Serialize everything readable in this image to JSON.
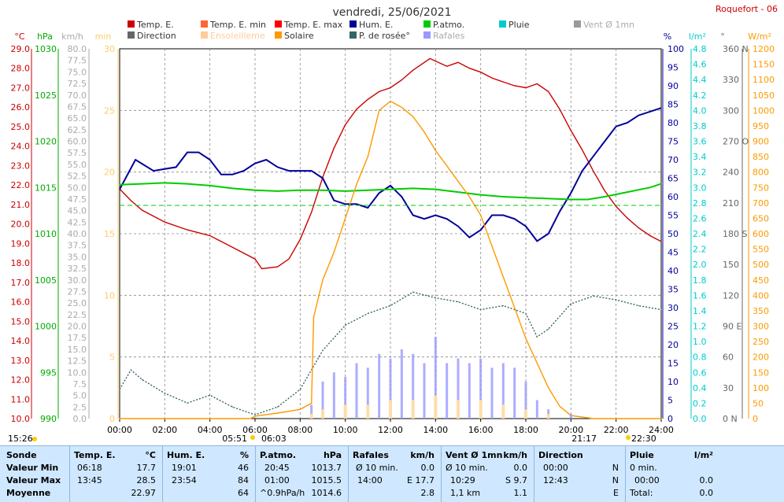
{
  "title": "vendredi, 25/06/2021",
  "station": "Roquefort - 06",
  "legend": [
    {
      "label": "Temp. E.",
      "color": "#cc0000"
    },
    {
      "label": "Temp. E. min",
      "color": "#ff6633"
    },
    {
      "label": "Temp. E. max",
      "color": "#ff0000"
    },
    {
      "label": "Hum. E.",
      "color": "#000099"
    },
    {
      "label": "P.atmo.",
      "color": "#00cc00"
    },
    {
      "label": "Pluie",
      "color": "#00cccc"
    },
    {
      "label": "Vent Ø 1mn",
      "color": "#999999"
    },
    {
      "label": "Direction",
      "color": "#666666"
    },
    {
      "label": "Ensoleilleme",
      "color": "#ffcc99"
    },
    {
      "label": "Solaire",
      "color": "#ff9900"
    },
    {
      "label": "P. de rosée°",
      "color": "#336666"
    },
    {
      "label": "Rafales",
      "color": "#9999ff"
    }
  ],
  "axes": {
    "temp": {
      "unit": "°C",
      "color": "#cc0000",
      "ticks": [
        "29.0",
        "28.0",
        "27.0",
        "26.0",
        "25.0",
        "24.0",
        "23.0",
        "22.0",
        "21.0",
        "20.0",
        "19.0",
        "18.0",
        "17.0",
        "16.0",
        "15.0",
        "14.0",
        "13.0",
        "12.0",
        "11.0",
        "10.0"
      ]
    },
    "press": {
      "unit": "hPa",
      "color": "#00aa00",
      "ticks": [
        "1030",
        "1025",
        "1020",
        "1015",
        "1010",
        "1005",
        "1000",
        "995",
        "990"
      ]
    },
    "wind": {
      "unit": "km/h",
      "color": "#aaaaaa",
      "ticks": [
        "80.0",
        "77.5",
        "75.0",
        "72.5",
        "70.0",
        "67.5",
        "65.0",
        "62.5",
        "60.0",
        "57.5",
        "55.0",
        "52.5",
        "50.0",
        "47.5",
        "45.0",
        "42.5",
        "40.0",
        "37.5",
        "35.0",
        "32.5",
        "30.0",
        "27.5",
        "25.0",
        "22.5",
        "20.0",
        "17.5",
        "15.0",
        "12.5",
        "10.0",
        "7.5",
        "5.0",
        "2.5",
        "0.0"
      ]
    },
    "min": {
      "unit": "min",
      "color": "#ffcc66",
      "ticks": [
        "30",
        "25",
        "20",
        "15",
        "10",
        "5",
        "0"
      ]
    },
    "hum": {
      "unit": "%",
      "color": "#000099",
      "ticks": [
        "100",
        "95",
        "90",
        "85",
        "80",
        "75",
        "70",
        "65",
        "60",
        "55",
        "50",
        "45",
        "40",
        "35",
        "30",
        "25",
        "20",
        "15",
        "10",
        "5",
        "0"
      ]
    },
    "rain": {
      "unit": "l/m²",
      "color": "#00cccc",
      "ticks": [
        "4.8",
        "4.6",
        "4.4",
        "4.2",
        "4.0",
        "3.8",
        "3.6",
        "3.4",
        "3.2",
        "3.0",
        "2.8",
        "2.6",
        "2.4",
        "2.2",
        "2.0",
        "1.8",
        "1.6",
        "1.4",
        "1.2",
        "1.0",
        "0.8",
        "0.6",
        "0.4",
        "0.2",
        "0.0"
      ]
    },
    "dir": {
      "unit": "°",
      "color": "#666666",
      "ticks": [
        "360 N",
        "330",
        "300",
        "270 O",
        "240",
        "210",
        "180 S",
        "150",
        "120",
        "90 E",
        "60",
        "30",
        "0 N"
      ]
    },
    "solar": {
      "unit": "W/m²",
      "color": "#ff9900",
      "ticks": [
        "1200",
        "1150",
        "1100",
        "1050",
        "1000",
        "950",
        "900",
        "850",
        "800",
        "750",
        "700",
        "650",
        "600",
        "550",
        "500",
        "450",
        "400",
        "350",
        "300",
        "250",
        "200",
        "150",
        "100",
        "50",
        "0"
      ]
    },
    "x": {
      "ticks": [
        "00:00",
        "02:00",
        "04:00",
        "06:00",
        "08:00",
        "10:00",
        "12:00",
        "14:00",
        "16:00",
        "18:00",
        "20:00",
        "22:00",
        "24:00"
      ]
    }
  },
  "markers": {
    "moonrise": "15:26",
    "sunrise_a": "05:51",
    "sunrise_b": "06:03",
    "sunset_a": "21:17",
    "sunset_b": "22:30"
  },
  "chart_data": {
    "type": "line",
    "x_unit": "hour",
    "xlim": [
      0,
      24
    ],
    "series": [
      {
        "name": "Temp. E.",
        "unit": "°C",
        "color": "#cc0000",
        "points": [
          [
            0,
            21.8
          ],
          [
            0.5,
            21.2
          ],
          [
            1,
            20.7
          ],
          [
            2,
            20.1
          ],
          [
            3,
            19.7
          ],
          [
            4,
            19.4
          ],
          [
            5,
            18.8
          ],
          [
            6,
            18.2
          ],
          [
            6.3,
            17.7
          ],
          [
            7,
            17.8
          ],
          [
            7.5,
            18.2
          ],
          [
            8,
            19.2
          ],
          [
            8.5,
            20.6
          ],
          [
            9,
            22.4
          ],
          [
            9.5,
            23.9
          ],
          [
            10,
            25.1
          ],
          [
            10.5,
            25.9
          ],
          [
            11,
            26.4
          ],
          [
            11.5,
            26.8
          ],
          [
            12,
            27.0
          ],
          [
            12.5,
            27.4
          ],
          [
            13,
            27.9
          ],
          [
            13.75,
            28.5
          ],
          [
            14.5,
            28.1
          ],
          [
            15,
            28.3
          ],
          [
            15.5,
            28.0
          ],
          [
            16,
            27.8
          ],
          [
            16.5,
            27.5
          ],
          [
            17,
            27.3
          ],
          [
            17.5,
            27.1
          ],
          [
            18,
            27.0
          ],
          [
            18.5,
            27.2
          ],
          [
            19,
            26.8
          ],
          [
            19.5,
            25.9
          ],
          [
            20,
            24.8
          ],
          [
            20.5,
            23.8
          ],
          [
            21,
            22.7
          ],
          [
            21.5,
            21.7
          ],
          [
            22,
            20.9
          ],
          [
            22.5,
            20.3
          ],
          [
            23,
            19.8
          ],
          [
            23.5,
            19.4
          ],
          [
            24,
            19.1
          ]
        ]
      },
      {
        "name": "Hum. E.",
        "unit": "%",
        "color": "#000099",
        "points": [
          [
            0,
            62
          ],
          [
            0.7,
            70
          ],
          [
            1.5,
            67
          ],
          [
            2.5,
            68
          ],
          [
            3,
            72
          ],
          [
            3.5,
            72
          ],
          [
            4,
            70
          ],
          [
            4.5,
            66
          ],
          [
            5,
            66
          ],
          [
            5.5,
            67
          ],
          [
            6,
            69
          ],
          [
            6.5,
            70
          ],
          [
            7,
            68
          ],
          [
            7.5,
            67
          ],
          [
            8,
            67
          ],
          [
            8.5,
            67
          ],
          [
            9,
            65
          ],
          [
            9.5,
            59
          ],
          [
            10,
            58
          ],
          [
            10.5,
            58
          ],
          [
            11,
            57
          ],
          [
            11.5,
            61
          ],
          [
            12,
            63
          ],
          [
            12.5,
            60
          ],
          [
            13,
            55
          ],
          [
            13.5,
            54
          ],
          [
            14,
            55
          ],
          [
            14.5,
            54
          ],
          [
            15,
            52
          ],
          [
            15.5,
            49
          ],
          [
            16,
            51
          ],
          [
            16.5,
            55
          ],
          [
            17,
            55
          ],
          [
            17.5,
            54
          ],
          [
            18,
            52
          ],
          [
            18.5,
            48
          ],
          [
            19,
            50
          ],
          [
            19.5,
            56
          ],
          [
            20,
            61
          ],
          [
            20.5,
            67
          ],
          [
            21,
            71
          ],
          [
            21.5,
            75
          ],
          [
            22,
            79
          ],
          [
            22.5,
            80
          ],
          [
            23,
            82
          ],
          [
            23.5,
            83
          ],
          [
            24,
            84
          ]
        ]
      },
      {
        "name": "P.atmo.",
        "unit": "hPa",
        "color": "#00cc00",
        "points": [
          [
            0,
            1015.3
          ],
          [
            1,
            1015.4
          ],
          [
            2,
            1015.5
          ],
          [
            3,
            1015.4
          ],
          [
            4,
            1015.2
          ],
          [
            5,
            1014.9
          ],
          [
            6,
            1014.7
          ],
          [
            7,
            1014.6
          ],
          [
            8,
            1014.7
          ],
          [
            9,
            1014.7
          ],
          [
            10,
            1014.6
          ],
          [
            11,
            1014.7
          ],
          [
            12,
            1014.8
          ],
          [
            13,
            1014.9
          ],
          [
            14,
            1014.8
          ],
          [
            15,
            1014.5
          ],
          [
            16,
            1014.2
          ],
          [
            17,
            1014.0
          ],
          [
            18,
            1013.9
          ],
          [
            19,
            1013.8
          ],
          [
            20,
            1013.7
          ],
          [
            20.75,
            1013.7
          ],
          [
            21.5,
            1014.0
          ],
          [
            22.5,
            1014.5
          ],
          [
            23.5,
            1015.0
          ],
          [
            24,
            1015.4
          ]
        ]
      },
      {
        "name": "P. de rosée°",
        "unit": "°C",
        "color": "#336666",
        "points": [
          [
            0,
            11.5
          ],
          [
            0.5,
            12.5
          ],
          [
            1,
            12.0
          ],
          [
            2,
            11.3
          ],
          [
            3,
            10.8
          ],
          [
            4,
            11.2
          ],
          [
            5,
            10.6
          ],
          [
            6,
            10.2
          ],
          [
            7,
            10.6
          ],
          [
            8,
            11.5
          ],
          [
            9,
            13.5
          ],
          [
            10,
            14.8
          ],
          [
            11,
            15.4
          ],
          [
            12,
            15.8
          ],
          [
            13,
            16.5
          ],
          [
            14,
            16.2
          ],
          [
            15,
            16.0
          ],
          [
            16,
            15.6
          ],
          [
            17,
            15.8
          ],
          [
            18,
            15.4
          ],
          [
            18.5,
            14.2
          ],
          [
            19,
            14.6
          ],
          [
            20,
            15.9
          ],
          [
            21,
            16.3
          ],
          [
            22,
            16.1
          ],
          [
            23,
            15.8
          ],
          [
            24,
            15.6
          ]
        ]
      },
      {
        "name": "Solaire",
        "unit": "W/m²",
        "color": "#ff9900",
        "points": [
          [
            0,
            0
          ],
          [
            5.8,
            0
          ],
          [
            6,
            8
          ],
          [
            7,
            18
          ],
          [
            8,
            30
          ],
          [
            8.5,
            50
          ],
          [
            8.6,
            330
          ],
          [
            9,
            450
          ],
          [
            9.5,
            540
          ],
          [
            10,
            650
          ],
          [
            10.5,
            760
          ],
          [
            11,
            850
          ],
          [
            11.5,
            1000
          ],
          [
            12,
            1030
          ],
          [
            12.5,
            1010
          ],
          [
            13,
            980
          ],
          [
            13.5,
            930
          ],
          [
            14,
            870
          ],
          [
            14.5,
            820
          ],
          [
            15,
            770
          ],
          [
            15.5,
            720
          ],
          [
            16,
            660
          ],
          [
            16.5,
            560
          ],
          [
            17,
            460
          ],
          [
            17.5,
            360
          ],
          [
            18,
            260
          ],
          [
            18.5,
            180
          ],
          [
            19,
            100
          ],
          [
            19.5,
            40
          ],
          [
            20,
            10
          ],
          [
            21,
            0
          ],
          [
            24,
            0
          ]
        ]
      },
      {
        "name": "Rafales",
        "unit": "km/h",
        "color": "#9999ff",
        "points": [
          [
            8.5,
            3
          ],
          [
            9,
            8
          ],
          [
            9.5,
            10
          ],
          [
            10,
            9
          ],
          [
            10.5,
            12
          ],
          [
            11,
            11
          ],
          [
            11.5,
            14
          ],
          [
            12,
            13
          ],
          [
            12.5,
            15
          ],
          [
            13,
            14
          ],
          [
            13.5,
            12
          ],
          [
            14,
            17.7
          ],
          [
            14.5,
            12
          ],
          [
            15,
            13
          ],
          [
            15.5,
            12
          ],
          [
            16,
            13
          ],
          [
            16.5,
            11
          ],
          [
            17,
            12
          ],
          [
            17.5,
            11
          ],
          [
            18,
            8
          ],
          [
            18.5,
            4
          ],
          [
            19,
            2
          ],
          [
            20,
            1
          ]
        ]
      },
      {
        "name": "Vent Ø 1mn",
        "unit": "km/h",
        "color": "#999999",
        "points": [
          [
            8.5,
            1
          ],
          [
            9,
            2
          ],
          [
            10,
            3
          ],
          [
            11,
            3
          ],
          [
            12,
            4
          ],
          [
            13,
            4
          ],
          [
            14,
            5
          ],
          [
            15,
            4
          ],
          [
            16,
            4
          ],
          [
            17,
            3
          ],
          [
            18,
            2
          ],
          [
            19,
            1
          ],
          [
            20,
            0
          ]
        ]
      }
    ]
  },
  "summary": {
    "headers": {
      "sonde": "Sonde",
      "temp": "Temp. E.",
      "temp_u": "°C",
      "hum": "Hum. E.",
      "hum_u": "%",
      "press": "P.atmo.",
      "press_u": "hPa",
      "gust": "Rafales",
      "gust_u": "km/h",
      "wind": "Vent Ø 1mn",
      "wind_u": "km/h",
      "dir": "Direction",
      "rain": "Pluie",
      "rain_u": "l/m²"
    },
    "rows": [
      {
        "label": "Valeur Min",
        "temp_t": "06:18",
        "temp_v": "17.7",
        "hum_t": "19:01",
        "hum_v": "46",
        "press_t": "20:45",
        "press_v": "1013.7",
        "gust_t": "Ø 10 min.",
        "gust_v": "0.0",
        "wind_t": "Ø 10 min.",
        "wind_v": "0.0",
        "dir_t": "00:00",
        "dir_v": "N",
        "rain_t": "0 min.",
        "rain_v": ""
      },
      {
        "label": "Valeur Max",
        "temp_t": "13:45",
        "temp_v": "28.5",
        "hum_t": "23:54",
        "hum_v": "84",
        "press_t": "01:00",
        "press_v": "1015.5",
        "gust_t": "14:00",
        "gust_v": "E 17.7",
        "wind_t": "10:29",
        "wind_v": "S 9.7",
        "dir_t": "12:43",
        "dir_v": "N",
        "rain_t": "00:00",
        "rain_v": "0.0"
      },
      {
        "label": "Moyenne",
        "temp_t": "",
        "temp_v": "22.97",
        "hum_t": "",
        "hum_v": "64",
        "press_t": "^0.9hPa/h",
        "press_v": "1014.6",
        "gust_t": "",
        "gust_v": "2.8",
        "wind_t": "1,1 km",
        "wind_v": "1.1",
        "dir_t": "",
        "dir_v": "E",
        "rain_t": "Total:",
        "rain_v": "0.0"
      }
    ]
  }
}
